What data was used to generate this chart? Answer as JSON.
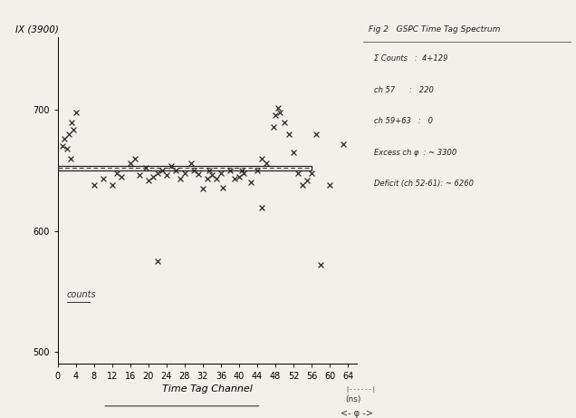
{
  "xlabel": "Time Tag Channel",
  "ylabel": "IX (3900)",
  "ylim": [
    490,
    760
  ],
  "xlim": [
    0,
    66
  ],
  "xticks": [
    0,
    4,
    8,
    12,
    16,
    20,
    24,
    28,
    32,
    36,
    40,
    44,
    48,
    52,
    56,
    60,
    64
  ],
  "yticks": [
    500,
    600,
    700
  ],
  "bg_color": "#f2f0eb",
  "dashed_line_y": 652,
  "rect_x0": 0,
  "rect_x1": 56,
  "rect_y_center": 652,
  "scatter_data": [
    [
      1.5,
      676
    ],
    [
      2.5,
      680
    ],
    [
      3.0,
      690
    ],
    [
      4.0,
      698
    ],
    [
      2.0,
      668
    ],
    [
      3.5,
      684
    ],
    [
      1.0,
      670
    ],
    [
      2.8,
      660
    ],
    [
      8,
      638
    ],
    [
      10,
      643
    ],
    [
      12,
      638
    ],
    [
      13,
      648
    ],
    [
      14,
      645
    ],
    [
      16,
      656
    ],
    [
      17,
      660
    ],
    [
      18,
      646
    ],
    [
      19.5,
      652
    ],
    [
      20,
      642
    ],
    [
      21,
      645
    ],
    [
      22,
      648
    ],
    [
      23,
      650
    ],
    [
      24,
      646
    ],
    [
      25,
      654
    ],
    [
      26,
      650
    ],
    [
      27,
      643
    ],
    [
      28,
      648
    ],
    [
      29.5,
      656
    ],
    [
      30,
      650
    ],
    [
      31,
      647
    ],
    [
      32,
      635
    ],
    [
      33,
      643
    ],
    [
      33.5,
      650
    ],
    [
      34,
      646
    ],
    [
      36,
      648
    ],
    [
      36.5,
      636
    ],
    [
      35,
      643
    ],
    [
      22,
      575
    ],
    [
      38,
      650
    ],
    [
      39,
      643
    ],
    [
      40,
      645
    ],
    [
      40.5,
      650
    ],
    [
      41,
      648
    ],
    [
      42.5,
      640
    ],
    [
      44,
      650
    ],
    [
      45,
      660
    ],
    [
      46,
      656
    ],
    [
      47.5,
      686
    ],
    [
      48,
      696
    ],
    [
      48.5,
      702
    ],
    [
      49,
      698
    ],
    [
      50,
      690
    ],
    [
      51,
      680
    ],
    [
      52,
      665
    ],
    [
      53,
      648
    ],
    [
      54,
      638
    ],
    [
      55,
      642
    ],
    [
      56,
      648
    ],
    [
      45,
      619
    ],
    [
      57,
      680
    ],
    [
      58,
      572
    ],
    [
      60,
      638
    ],
    [
      63,
      672
    ]
  ],
  "counts_label": "counts",
  "ann_title": "Fig 2   GSPC Time Tag Spectrum",
  "ann_lines": [
    "Σ Counts   :  4+129",
    "ch 57      :   220",
    "ch 59+63   :   0",
    "Excess ch φ  : ~ 3300",
    "Deficit (ch 52-61): ~ 6260"
  ],
  "bottom_ns": "(ns)",
  "bottom_phi": "<- φ ->"
}
